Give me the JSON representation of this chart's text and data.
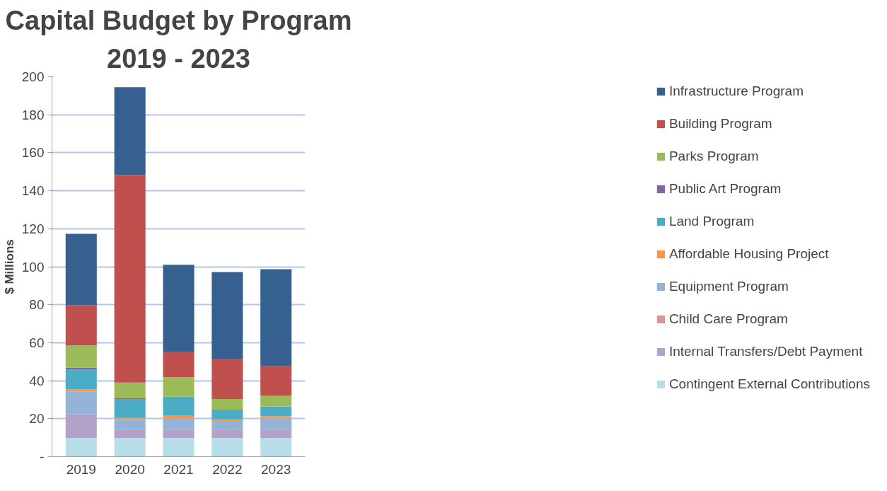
{
  "chart_data": {
    "type": "bar",
    "stacked": true,
    "title": "Capital Budget by Program",
    "subtitle": "2019 - 2023",
    "ylabel": "$ Millions",
    "categories": [
      "2019",
      "2020",
      "2021",
      "2022",
      "2023"
    ],
    "ylim": [
      0,
      200
    ],
    "yticks": [
      {
        "value": 0,
        "label": "-"
      },
      20,
      40,
      60,
      80,
      100,
      120,
      140,
      160,
      180,
      200
    ],
    "grid": "y",
    "legend": "right",
    "series": [
      {
        "name": "Contingent External Contributions",
        "color": "#b7dee8",
        "values": [
          9.9,
          9.9,
          9.9,
          9.9,
          9.9
        ]
      },
      {
        "name": "Internal Transfers/Debt Payment",
        "color": "#b3a2c7",
        "values": [
          12.5,
          4.5,
          4.5,
          4.5,
          4.5
        ]
      },
      {
        "name": "Child Care Program",
        "color": "#d99694",
        "values": [
          0,
          0,
          0,
          0,
          0
        ]
      },
      {
        "name": "Equipment Program",
        "color": "#95b3d7",
        "values": [
          12.0,
          5.0,
          5.9,
          4.4,
          6.0
        ]
      },
      {
        "name": "Affordable Housing Project",
        "color": "#f79646",
        "values": [
          1.0,
          1.0,
          1.2,
          0.8,
          0.9
        ]
      },
      {
        "name": "Land Program",
        "color": "#4bacc6",
        "values": [
          10.5,
          9.7,
          10.1,
          5.2,
          5.1
        ]
      },
      {
        "name": "Public Art Program",
        "color": "#8064a2",
        "values": [
          0.9,
          0.6,
          0,
          0,
          0
        ]
      },
      {
        "name": "Parks Program",
        "color": "#9bbb59",
        "values": [
          11.8,
          8.3,
          10.2,
          5.6,
          5.6
        ]
      },
      {
        "name": "Building Program",
        "color": "#c0504d",
        "values": [
          21.1,
          109.3,
          13.2,
          21.2,
          15.6
        ]
      },
      {
        "name": "Infrastructure Program",
        "color": "#36608f",
        "values": [
          37.6,
          46.2,
          46.0,
          45.6,
          51.1
        ]
      }
    ]
  }
}
